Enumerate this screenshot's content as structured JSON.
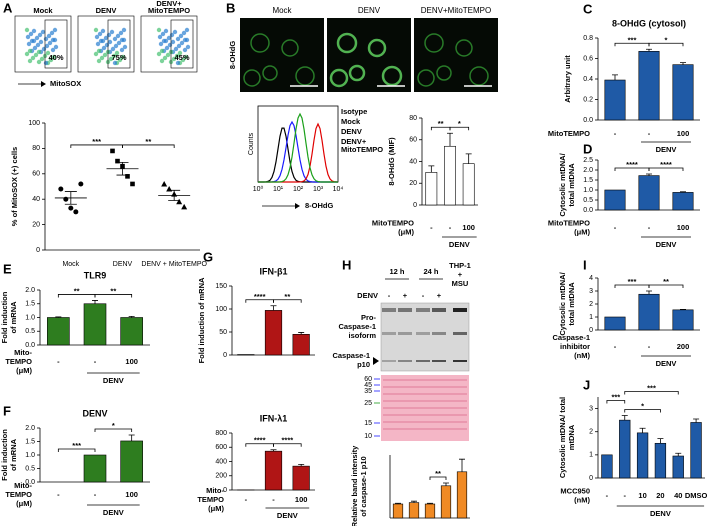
{
  "figure": {
    "panel_letters": [
      "A",
      "B",
      "C",
      "D",
      "E",
      "F",
      "G",
      "H",
      "I",
      "J"
    ],
    "flow": {
      "labels": [
        [
          "Mock"
        ],
        [
          "DENV"
        ],
        [
          "DENV+",
          "MitoTEMPO"
        ]
      ],
      "percents": [
        "40%",
        "75%",
        "45%"
      ],
      "axis_label": "MitoSOX"
    },
    "images": {
      "labels": [
        "Mock",
        "DENV",
        "DENV+MitoTEMPO"
      ],
      "stain": "8-OHdG"
    },
    "histogram": {
      "ylabel": "Counts",
      "xlabel": "8-OHdG",
      "xticks": [
        "10⁰",
        "10¹",
        "10²",
        "10³",
        "10⁴"
      ],
      "legend": [
        {
          "label": [
            "Isotype"
          ],
          "color": "#000000"
        },
        {
          "label": [
            "Mock"
          ],
          "color": "#1a1aff"
        },
        {
          "label": [
            "DENV"
          ],
          "color": "#e00000"
        },
        {
          "label": [
            "DENV+",
            "MitoTEMPO"
          ],
          "color": "#1aa01a"
        }
      ]
    },
    "blot": {
      "times": [
        "12 h",
        "24 h"
      ],
      "control": [
        "THP-1",
        "+",
        "MSU"
      ],
      "treatment": "DENV",
      "signs": [
        "-",
        "+",
        "-",
        "+"
      ],
      "pro_label": [
        "Pro-",
        "Caspase-1",
        "isoform"
      ],
      "p10_label": [
        "Caspase-1",
        "p10"
      ],
      "markers": [
        60,
        45,
        35,
        25,
        15,
        10
      ],
      "marker_colors": [
        "#1a1aff",
        "#1a1aff",
        "#1a1aff",
        "#1a9a1a",
        "#1a1aff",
        "#1a1aff"
      ]
    }
  },
  "chart_data": [
    {
      "type": "scatter",
      "ylabel": [
        "% of MitoSOX (+) cells"
      ],
      "categories": [
        "Mock",
        "DENV",
        "DENV + MitoTEMPO"
      ],
      "points": [
        [
          48,
          40,
          33,
          30,
          52
        ],
        [
          78,
          70,
          66,
          58,
          52
        ],
        [
          52,
          48,
          44,
          38,
          34
        ]
      ],
      "means": [
        41,
        64,
        43
      ],
      "errors": [
        5,
        5,
        4
      ],
      "ylim": [
        0,
        100
      ],
      "yticks": [
        0,
        20,
        40,
        60,
        80,
        100
      ],
      "significance": [
        "***",
        "**"
      ],
      "color": "#000000"
    },
    {
      "type": "bar",
      "ylabel": [
        "8-OHdG (MIF)"
      ],
      "values": [
        30,
        54,
        38
      ],
      "errors": [
        6,
        12,
        9
      ],
      "ylim": [
        0,
        80
      ],
      "yticks": [
        0,
        20,
        40,
        60,
        80
      ],
      "categories": [
        "-",
        "-",
        "100"
      ],
      "treatment": [
        "MitoTEMPO",
        "(μM)"
      ],
      "group": "DENV",
      "significance": [
        "**",
        "*"
      ],
      "color": "#ffffff"
    },
    {
      "type": "bar",
      "title": "8-OHdG (cytosol)",
      "ylabel": [
        "Arbitrary unit"
      ],
      "values": [
        0.39,
        0.67,
        0.54
      ],
      "errors": [
        0.05,
        0.02,
        0.02
      ],
      "ylim": [
        0,
        0.8
      ],
      "yticks": [
        {
          "value": 0,
          "label": "0.0"
        },
        0.2,
        0.4,
        0.6,
        0.8
      ],
      "categories": [
        "-",
        "-",
        "100"
      ],
      "treatment": [
        "MitoTEMPO"
      ],
      "group": "DENV",
      "significance": [
        "***",
        "*"
      ],
      "color": "#1f5aa6"
    },
    {
      "type": "bar",
      "ylabel": [
        "Cytosolic mtDNA/",
        "total mtDNA"
      ],
      "values": [
        1.0,
        1.72,
        0.88
      ],
      "errors": [
        0,
        0.08,
        0.03
      ],
      "ylim": [
        0,
        2.5
      ],
      "yticks": [
        {
          "value": 0,
          "label": "0.0"
        },
        0.5,
        {
          "value": 1,
          "label": "1.0"
        },
        1.5,
        {
          "value": 2,
          "label": "2.0"
        },
        2.5
      ],
      "categories": [
        "-",
        "-",
        "100"
      ],
      "treatment": [
        "MitoTEMPO",
        "(μM)"
      ],
      "group": "DENV",
      "significance": [
        "****",
        "****"
      ],
      "color": "#1f5aa6"
    },
    {
      "type": "bar",
      "title": "TLR9",
      "ylabel": [
        "Fold induction",
        "of mRNA"
      ],
      "values": [
        1.0,
        1.5,
        1.0
      ],
      "errors": [
        0.02,
        0.12,
        0.04
      ],
      "ylim": [
        0,
        2
      ],
      "yticks": [
        {
          "value": 0,
          "label": "0.0"
        },
        0.5,
        {
          "value": 1,
          "label": "1.0"
        },
        1.5,
        {
          "value": 2,
          "label": "2.0"
        }
      ],
      "categories": [
        "-",
        "-",
        "100"
      ],
      "treatment": [
        "Mito-",
        "TEMPO",
        "(μM)"
      ],
      "group": "DENV",
      "significance": [
        "**",
        "**"
      ],
      "color": "#2e7d1f"
    },
    {
      "type": "bar",
      "title": "DENV",
      "ylabel": [
        "Fold induction",
        "of mRNA"
      ],
      "values": [
        0,
        1.0,
        1.52
      ],
      "errors": [
        0,
        0,
        0.22
      ],
      "ylim": [
        0,
        2
      ],
      "yticks": [
        {
          "value": 0,
          "label": "0.0"
        },
        0.5,
        {
          "value": 1,
          "label": "1.0"
        },
        1.5,
        {
          "value": 2,
          "label": "2.0"
        }
      ],
      "categories": [
        "-",
        "-",
        "100"
      ],
      "treatment": [
        "Mito-",
        "TEMPO",
        "(μM)"
      ],
      "group": "DENV",
      "significance": [
        "***",
        "*"
      ],
      "color": "#2e7d1f"
    },
    {
      "type": "bar",
      "title": "IFN-β1",
      "ylabel": [
        "Fold induction of mRNA"
      ],
      "values": [
        1,
        97,
        45
      ],
      "errors": [
        0,
        10,
        4
      ],
      "ylim": [
        0,
        150
      ],
      "yticks": [
        0,
        50,
        100,
        150
      ],
      "significance": [
        "****",
        "**"
      ],
      "color": "#b01515"
    },
    {
      "type": "bar",
      "title": "IFN-λ1",
      "values": [
        1,
        545,
        335
      ],
      "errors": [
        0,
        20,
        25
      ],
      "ylim": [
        0,
        800
      ],
      "yticks": [
        0,
        200,
        400,
        600,
        800
      ],
      "categories": [
        "-",
        "-",
        "100"
      ],
      "treatment": [
        "Mito-",
        "TEMPO",
        "(μM)"
      ],
      "group": "DENV",
      "significance": [
        "****",
        "****"
      ],
      "color": "#b01515"
    },
    {
      "type": "bar",
      "ylabel": [
        "Relative band intensity",
        "of caspase-1 p10"
      ],
      "values": [
        1.0,
        1.1,
        1.0,
        2.3,
        3.3
      ],
      "errors": [
        0.05,
        0.1,
        0.05,
        0.2,
        0.9
      ],
      "ylim": [
        0,
        4.5
      ],
      "significance": [
        "**"
      ],
      "color": "#f08a24"
    },
    {
      "type": "bar",
      "ylabel": [
        "Cytosolic mtDNA/",
        "total mtDNA"
      ],
      "values": [
        1.0,
        2.75,
        1.55
      ],
      "errors": [
        0,
        0.25,
        0.03
      ],
      "ylim": [
        0,
        4
      ],
      "yticks": [
        0,
        1,
        2,
        3,
        4
      ],
      "categories": [
        "-",
        "-",
        "200"
      ],
      "treatment": [
        "Caspase-1",
        "inhibitor",
        "(nM)"
      ],
      "group": "DENV",
      "significance": [
        "***",
        "**"
      ],
      "color": "#1f5aa6"
    },
    {
      "type": "bar",
      "ylabel": [
        "Cytosolic mtDNA/ total",
        "mtDNA"
      ],
      "values": [
        1.0,
        2.5,
        1.95,
        1.5,
        0.95,
        2.4
      ],
      "errors": [
        0,
        0.2,
        0.2,
        0.2,
        0.12,
        0.15
      ],
      "ylim": [
        0,
        3.5
      ],
      "yticks": [
        0,
        1,
        2,
        3
      ],
      "categories": [
        "-",
        "-",
        "10",
        "20",
        "40",
        "DMSO"
      ],
      "treatment": [
        "MCC950",
        "(nM)"
      ],
      "group": "DENV",
      "significance": [
        "***",
        "***",
        "*"
      ],
      "color": "#1f5aa6"
    }
  ]
}
